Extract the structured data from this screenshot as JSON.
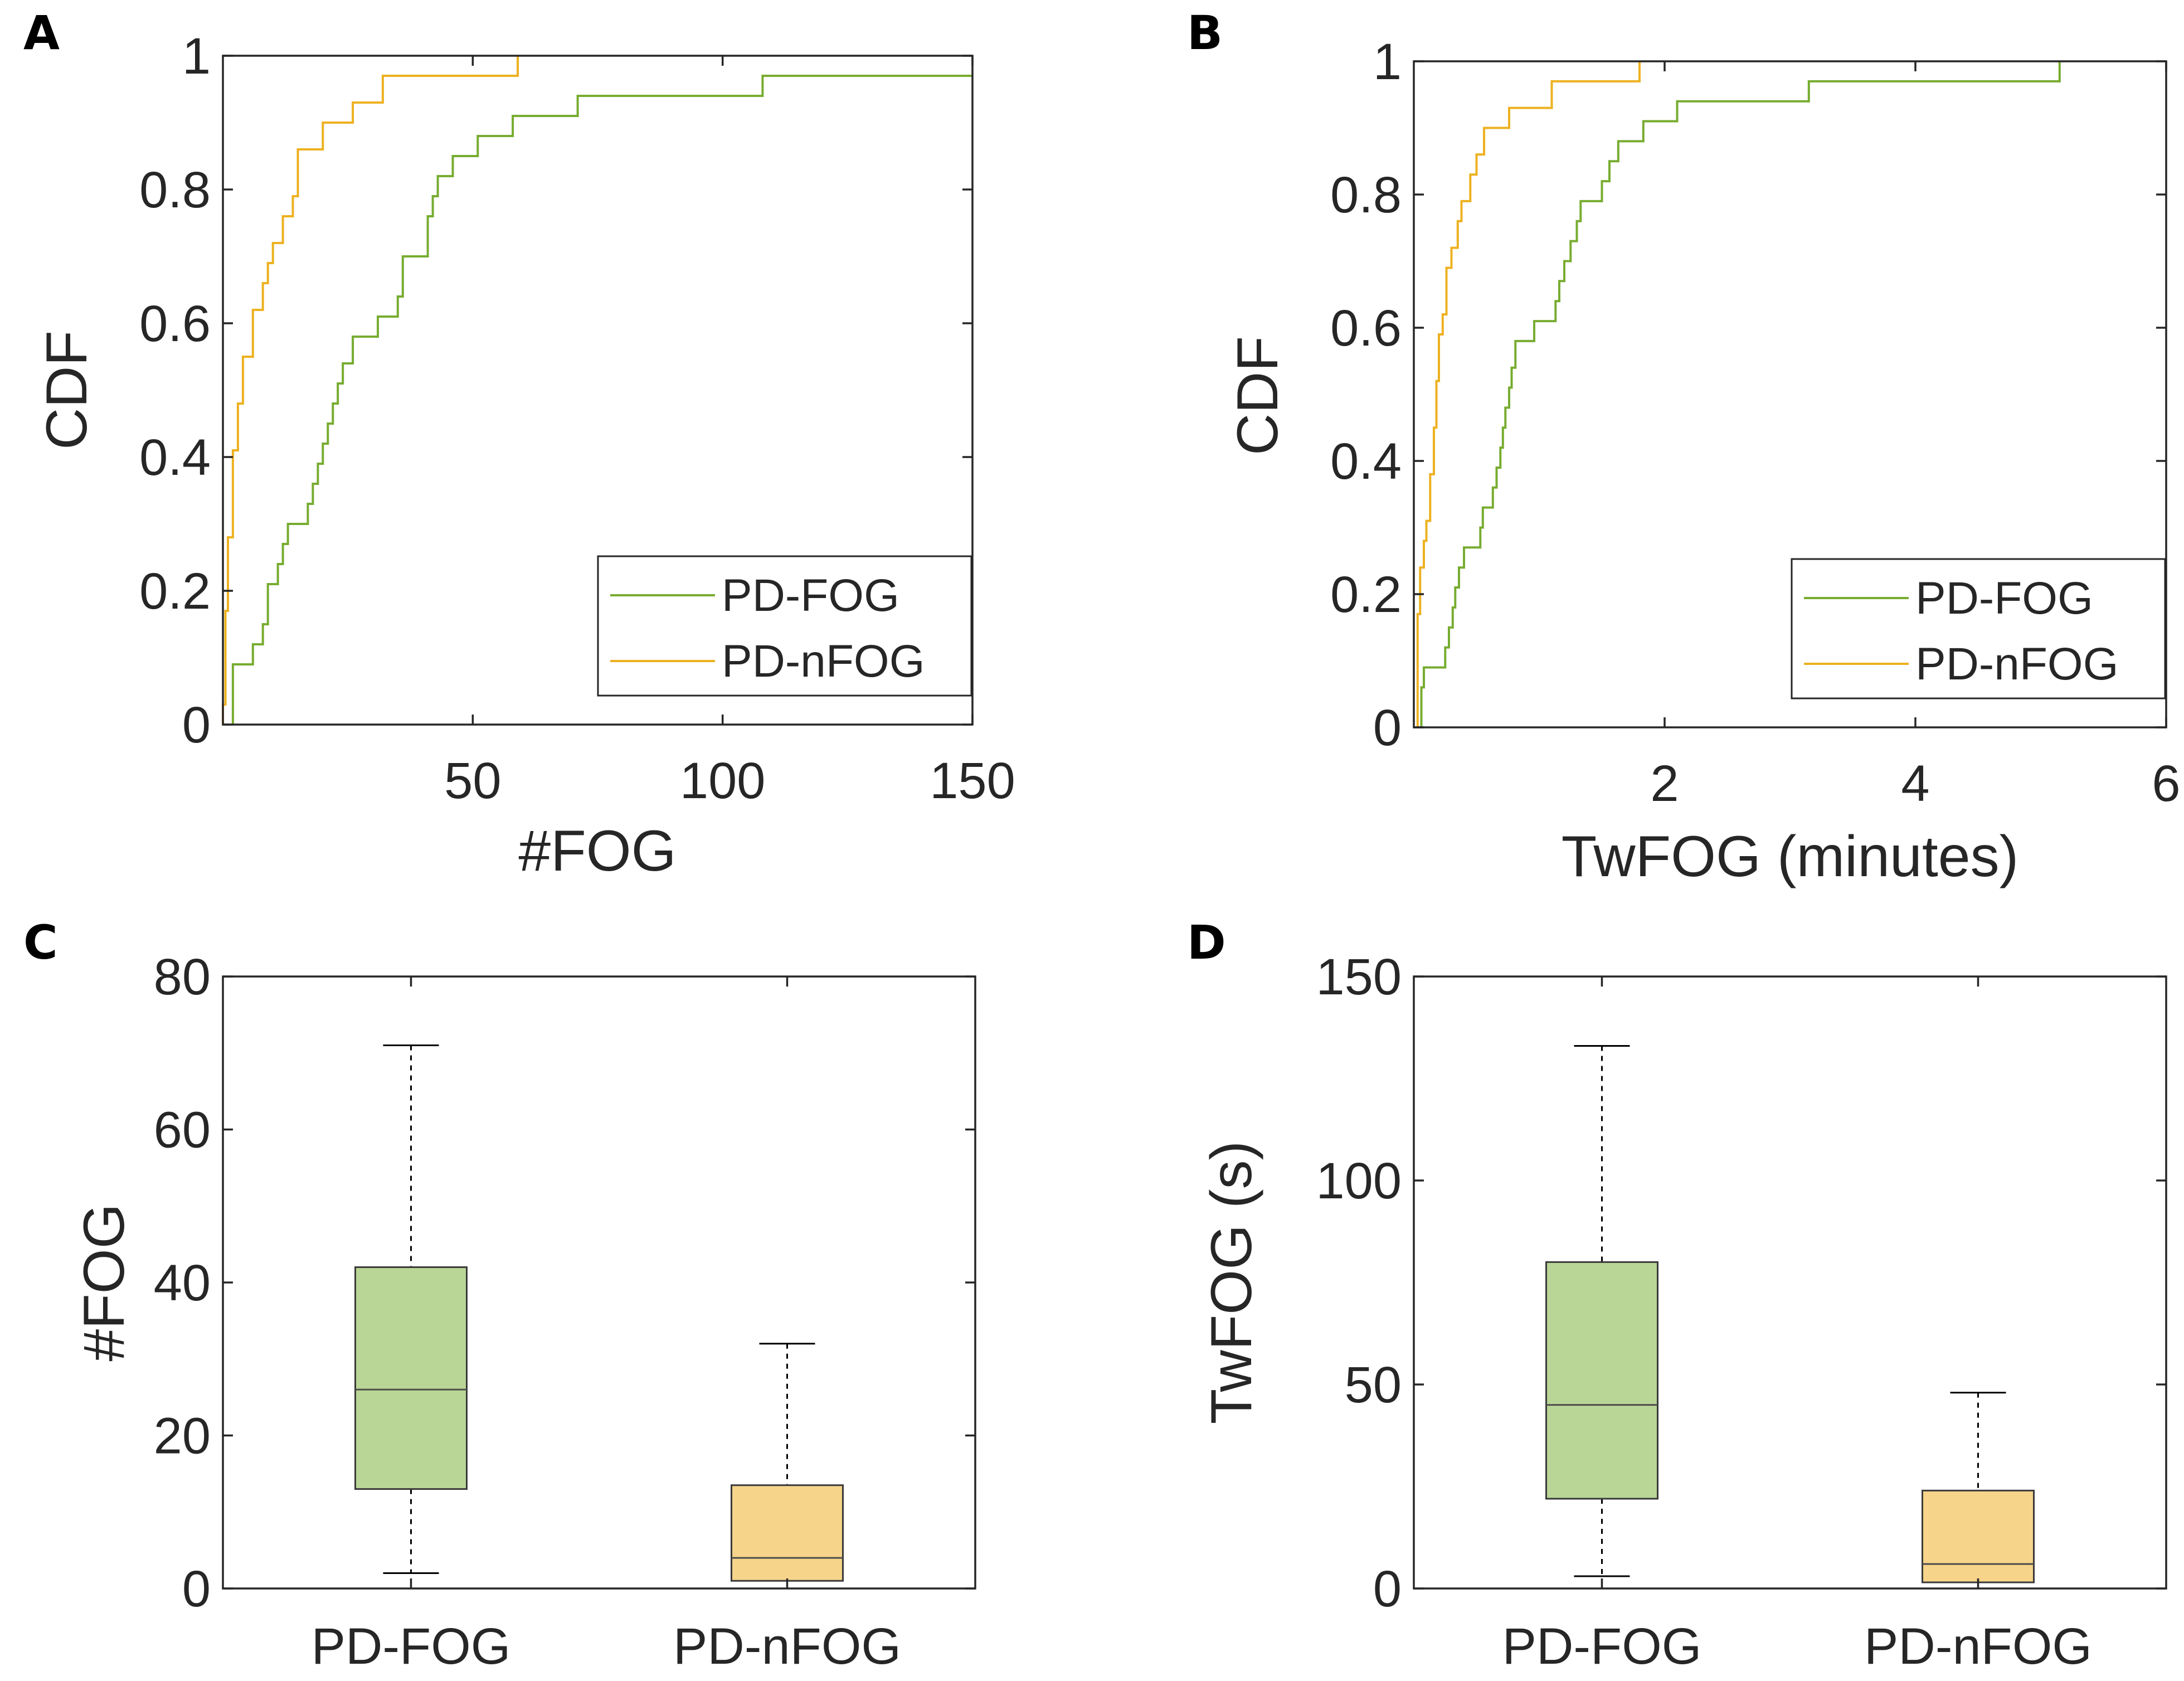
{
  "chart_data": [
    {
      "id": "A",
      "panel_label": "A",
      "type": "line",
      "subtype": "empirical-cdf-step",
      "xlabel": "#FOG",
      "ylabel": "CDF",
      "xlim": [
        0,
        150
      ],
      "ylim": [
        0,
        1
      ],
      "xticks": [
        50,
        100,
        150
      ],
      "xtick_labels": [
        "50",
        "100",
        "150"
      ],
      "yticks": [
        0,
        0.2,
        0.4,
        0.6,
        0.8,
        1
      ],
      "ytick_labels": [
        "0",
        "0.2",
        "0.4",
        "0.6",
        "0.8",
        "1"
      ],
      "grid": false,
      "legend": "bottom-right",
      "series": [
        {
          "name": "PD-FOG",
          "color": "#77ac30",
          "steps": [
            [
              2,
              0.09
            ],
            [
              6,
              0.12
            ],
            [
              8,
              0.15
            ],
            [
              9,
              0.21
            ],
            [
              11,
              0.24
            ],
            [
              12,
              0.27
            ],
            [
              13,
              0.3
            ],
            [
              17,
              0.33
            ],
            [
              18,
              0.36
            ],
            [
              19,
              0.39
            ],
            [
              20,
              0.42
            ],
            [
              21,
              0.45
            ],
            [
              22,
              0.48
            ],
            [
              23,
              0.51
            ],
            [
              24,
              0.54
            ],
            [
              26,
              0.58
            ],
            [
              31,
              0.61
            ],
            [
              35,
              0.64
            ],
            [
              36,
              0.7
            ],
            [
              41,
              0.76
            ],
            [
              42,
              0.79
            ],
            [
              43,
              0.82
            ],
            [
              46,
              0.85
            ],
            [
              51,
              0.88
            ],
            [
              58,
              0.91
            ],
            [
              71,
              0.94
            ],
            [
              108,
              0.97
            ]
          ],
          "x_end": 150
        },
        {
          "name": "PD-nFOG",
          "color": "#edb120",
          "steps": [
            [
              0,
              0.03
            ],
            [
              0.5,
              0.17
            ],
            [
              1,
              0.28
            ],
            [
              2,
              0.41
            ],
            [
              3,
              0.48
            ],
            [
              4,
              0.55
            ],
            [
              6,
              0.62
            ],
            [
              8,
              0.66
            ],
            [
              9,
              0.69
            ],
            [
              10,
              0.72
            ],
            [
              12,
              0.76
            ],
            [
              14,
              0.79
            ],
            [
              15,
              0.86
            ],
            [
              20,
              0.9
            ],
            [
              26,
              0.93
            ],
            [
              32,
              0.97
            ],
            [
              59,
              1
            ]
          ],
          "x_end": 59
        }
      ]
    },
    {
      "id": "B",
      "panel_label": "B",
      "type": "line",
      "subtype": "empirical-cdf-step",
      "xlabel": "TwFOG (minutes)",
      "ylabel": "CDF",
      "xlim": [
        0,
        6
      ],
      "ylim": [
        0,
        1
      ],
      "xticks": [
        2,
        4,
        6
      ],
      "xtick_labels": [
        "2",
        "4",
        "6"
      ],
      "yticks": [
        0,
        0.2,
        0.4,
        0.6,
        0.8,
        1
      ],
      "ytick_labels": [
        "0",
        "0.2",
        "0.4",
        "0.6",
        "0.8",
        "1"
      ],
      "grid": false,
      "legend": "bottom-right",
      "series": [
        {
          "name": "PD-FOG",
          "color": "#77ac30",
          "steps": [
            [
              0.06,
              0.06
            ],
            [
              0.08,
              0.09
            ],
            [
              0.25,
              0.12
            ],
            [
              0.28,
              0.15
            ],
            [
              0.31,
              0.18
            ],
            [
              0.33,
              0.21
            ],
            [
              0.36,
              0.24
            ],
            [
              0.4,
              0.27
            ],
            [
              0.53,
              0.3
            ],
            [
              0.55,
              0.33
            ],
            [
              0.63,
              0.36
            ],
            [
              0.66,
              0.39
            ],
            [
              0.69,
              0.42
            ],
            [
              0.71,
              0.45
            ],
            [
              0.73,
              0.48
            ],
            [
              0.76,
              0.51
            ],
            [
              0.78,
              0.54
            ],
            [
              0.81,
              0.58
            ],
            [
              0.96,
              0.61
            ],
            [
              1.13,
              0.64
            ],
            [
              1.16,
              0.67
            ],
            [
              1.2,
              0.7
            ],
            [
              1.25,
              0.73
            ],
            [
              1.3,
              0.76
            ],
            [
              1.33,
              0.79
            ],
            [
              1.5,
              0.82
            ],
            [
              1.56,
              0.85
            ],
            [
              1.63,
              0.88
            ],
            [
              1.83,
              0.91
            ],
            [
              2.1,
              0.94
            ],
            [
              3.15,
              0.97
            ],
            [
              5.15,
              1
            ]
          ],
          "x_end": 5.15
        },
        {
          "name": "PD-nFOG",
          "color": "#edb120",
          "steps": [
            [
              0.03,
              0.17
            ],
            [
              0.05,
              0.24
            ],
            [
              0.08,
              0.28
            ],
            [
              0.1,
              0.31
            ],
            [
              0.13,
              0.38
            ],
            [
              0.16,
              0.45
            ],
            [
              0.18,
              0.52
            ],
            [
              0.2,
              0.59
            ],
            [
              0.23,
              0.62
            ],
            [
              0.26,
              0.69
            ],
            [
              0.3,
              0.72
            ],
            [
              0.35,
              0.76
            ],
            [
              0.38,
              0.79
            ],
            [
              0.45,
              0.83
            ],
            [
              0.5,
              0.86
            ],
            [
              0.56,
              0.9
            ],
            [
              0.76,
              0.93
            ],
            [
              1.1,
              0.97
            ],
            [
              1.8,
              1
            ]
          ],
          "x_end": 1.8
        }
      ]
    },
    {
      "id": "C",
      "panel_label": "C",
      "type": "box",
      "ylabel": "#FOG",
      "xlabel": "",
      "categories": [
        "PD-FOG",
        "PD-nFOG"
      ],
      "ylim": [
        0,
        80
      ],
      "yticks": [
        0,
        20,
        40,
        60,
        80
      ],
      "ytick_labels": [
        "0",
        "20",
        "40",
        "60",
        "80"
      ],
      "grid": false,
      "boxes": [
        {
          "name": "PD-FOG",
          "whisker_low": 2,
          "q1": 13,
          "median": 26,
          "q3": 42,
          "whisker_high": 71,
          "fill": "#b9d696"
        },
        {
          "name": "PD-nFOG",
          "whisker_low": 0,
          "q1": 1,
          "median": 4,
          "q3": 13.5,
          "whisker_high": 32,
          "fill": "#f6d48a"
        }
      ]
    },
    {
      "id": "D",
      "panel_label": "D",
      "type": "box",
      "ylabel": "TwFOG (s)",
      "xlabel": "",
      "categories": [
        "PD-FOG",
        "PD-nFOG"
      ],
      "ylim": [
        0,
        150
      ],
      "yticks": [
        0,
        50,
        100,
        150
      ],
      "ytick_labels": [
        "0",
        "50",
        "100",
        "150"
      ],
      "grid": false,
      "boxes": [
        {
          "name": "PD-FOG",
          "whisker_low": 3,
          "q1": 22,
          "median": 45,
          "q3": 80,
          "whisker_high": 133,
          "fill": "#b9d696"
        },
        {
          "name": "PD-nFOG",
          "whisker_low": 0,
          "q1": 1.5,
          "median": 6,
          "q3": 24,
          "whisker_high": 48,
          "fill": "#f6d48a"
        }
      ]
    }
  ]
}
